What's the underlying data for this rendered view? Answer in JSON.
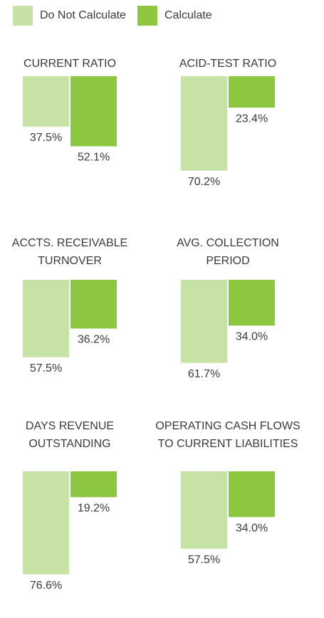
{
  "legend": [
    {
      "name": "Do Not Calculate",
      "color": "#c6e3a5"
    },
    {
      "name": "Calculate",
      "color": "#8dc63f"
    }
  ],
  "chart_data": [
    {
      "type": "bar",
      "title": [
        "CURRENT RATIO"
      ],
      "values": [
        37.5,
        52.1
      ],
      "value_labels": [
        "37.5%",
        "52.1%"
      ]
    },
    {
      "type": "bar",
      "title": [
        "ACID-TEST RATIO"
      ],
      "values": [
        70.2,
        23.4
      ],
      "value_labels": [
        "70.2%",
        "23.4%"
      ]
    },
    {
      "type": "bar",
      "title": [
        "ACCTS. RECEIVABLE",
        "TURNOVER"
      ],
      "values": [
        57.5,
        36.2
      ],
      "value_labels": [
        "57.5%",
        "36.2%"
      ]
    },
    {
      "type": "bar",
      "title": [
        "AVG. COLLECTION",
        "PERIOD"
      ],
      "values": [
        61.7,
        34.0
      ],
      "value_labels": [
        "61.7%",
        "34.0%"
      ]
    },
    {
      "type": "bar",
      "title": [
        "DAYS REVENUE",
        "OUTSTANDING"
      ],
      "values": [
        76.6,
        19.2
      ],
      "value_labels": [
        "76.6%",
        "19.2%"
      ]
    },
    {
      "type": "bar",
      "title": [
        "OPERATING CASH FLOWS",
        "TO CURRENT LIABILITIES"
      ],
      "values": [
        57.5,
        34.0
      ],
      "value_labels": [
        "57.5%",
        "34.0%"
      ]
    }
  ]
}
